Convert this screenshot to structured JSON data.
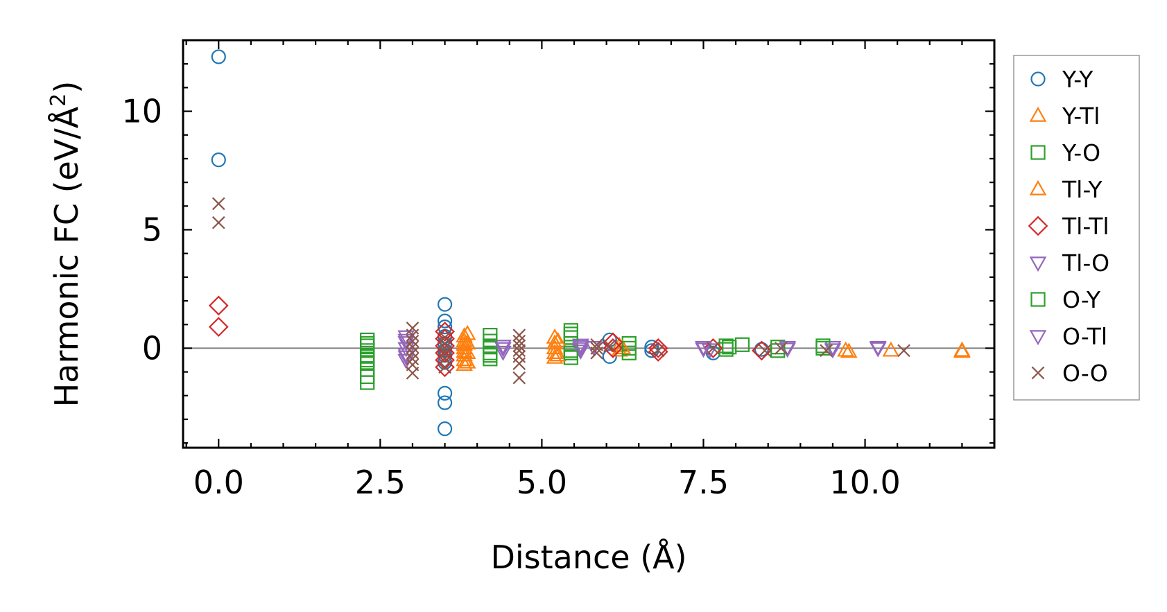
{
  "chart_data": {
    "type": "scatter",
    "title": "",
    "xlabel": "Distance (Å)",
    "ylabel": "Harmonic FC (eV/Å²)",
    "ylabel_parts": {
      "main": "Harmonic FC (eV/Å",
      "sup": "2",
      "close": ")"
    },
    "xlim": [
      -0.55,
      12.0
    ],
    "ylim": [
      -4.2,
      13.0
    ],
    "x_ticks": [
      0.0,
      2.5,
      5.0,
      7.5,
      10.0
    ],
    "x_tick_labels": [
      "0.0",
      "2.5",
      "5.0",
      "7.5",
      "10.0"
    ],
    "y_ticks": [
      0,
      5,
      10
    ],
    "y_tick_labels": [
      "0",
      "5",
      "10"
    ],
    "x_minor_step": 0.5,
    "y_minor_step": 1.0,
    "zero_line": true,
    "grid": false,
    "legend_position": "right-outside",
    "series": [
      {
        "name": "Y-Y",
        "marker": "circle",
        "color": "#1f77b4",
        "points": [
          [
            0,
            12.3
          ],
          [
            0,
            7.95
          ],
          [
            3.5,
            1.85
          ],
          [
            3.5,
            1.15
          ],
          [
            3.5,
            0.9
          ],
          [
            3.5,
            0.5
          ],
          [
            3.5,
            0.2
          ],
          [
            3.5,
            -0.1
          ],
          [
            3.5,
            -0.3
          ],
          [
            3.5,
            -0.6
          ],
          [
            3.5,
            -1.9
          ],
          [
            3.5,
            -2.3
          ],
          [
            3.5,
            -3.4
          ],
          [
            6.05,
            0.35
          ],
          [
            6.05,
            -0.35
          ],
          [
            6.7,
            0.05
          ],
          [
            6.7,
            -0.1
          ],
          [
            7.65,
            -0.2
          ],
          [
            8.4,
            -0.05
          ]
        ]
      },
      {
        "name": "Y-Tl",
        "marker": "triangle-up",
        "color": "#ff7f0e",
        "points": [
          [
            3.8,
            0.5
          ],
          [
            3.8,
            0.3
          ],
          [
            3.8,
            0.15
          ],
          [
            3.8,
            0
          ],
          [
            3.8,
            -0.15
          ],
          [
            3.8,
            -0.3
          ],
          [
            3.8,
            -0.5
          ],
          [
            3.8,
            -0.7
          ],
          [
            5.2,
            0.45
          ],
          [
            5.2,
            0.2
          ],
          [
            5.2,
            0
          ],
          [
            5.2,
            -0.2
          ],
          [
            5.2,
            -0.4
          ],
          [
            6.2,
            0.1
          ],
          [
            6.2,
            -0.1
          ],
          [
            9.7,
            -0.1
          ],
          [
            10.4,
            -0.1
          ],
          [
            11.5,
            -0.1
          ]
        ]
      },
      {
        "name": "Y-O",
        "marker": "square",
        "color": "#2ca02c",
        "points": [
          [
            2.3,
            0.35
          ],
          [
            2.3,
            0.1
          ],
          [
            2.3,
            -0.1
          ],
          [
            2.3,
            -0.3
          ],
          [
            2.3,
            -0.6
          ],
          [
            2.3,
            -0.9
          ],
          [
            2.3,
            -1.2
          ],
          [
            2.3,
            -1.45
          ],
          [
            4.2,
            0.55
          ],
          [
            4.2,
            0.3
          ],
          [
            4.2,
            0.05
          ],
          [
            4.2,
            -0.2
          ],
          [
            4.2,
            -0.45
          ],
          [
            5.45,
            0.75
          ],
          [
            5.45,
            0.45
          ],
          [
            5.45,
            0.2
          ],
          [
            5.45,
            -0.1
          ],
          [
            5.45,
            -0.4
          ],
          [
            6.35,
            0.2
          ],
          [
            6.35,
            -0.2
          ],
          [
            7.85,
            0.1
          ],
          [
            7.85,
            -0.05
          ],
          [
            8.1,
            0.15
          ],
          [
            8.65,
            0.05
          ],
          [
            9.35,
            0.1
          ]
        ]
      },
      {
        "name": "Tl-Y",
        "marker": "triangle-up",
        "color": "#ff7f0e",
        "points": [
          [
            3.85,
            0.6
          ],
          [
            3.85,
            0.2
          ],
          [
            3.85,
            -0.2
          ],
          [
            3.85,
            -0.6
          ],
          [
            5.25,
            0.3
          ],
          [
            5.25,
            -0.3
          ],
          [
            6.25,
            0
          ],
          [
            9.75,
            -0.15
          ],
          [
            11.5,
            -0.15
          ]
        ]
      },
      {
        "name": "Tl-Tl",
        "marker": "diamond",
        "color": "#d62728",
        "points": [
          [
            0,
            1.8
          ],
          [
            0,
            0.9
          ],
          [
            3.5,
            0.7
          ],
          [
            3.5,
            0.4
          ],
          [
            3.5,
            0.1
          ],
          [
            3.5,
            -0.2
          ],
          [
            3.5,
            -0.5
          ],
          [
            3.5,
            -0.8
          ],
          [
            6.1,
            0.25
          ],
          [
            6.1,
            0
          ],
          [
            6.8,
            0
          ],
          [
            6.8,
            -0.15
          ],
          [
            7.65,
            0
          ],
          [
            8.4,
            -0.1
          ]
        ]
      },
      {
        "name": "Tl-O",
        "marker": "triangle-down",
        "color": "#9467bd",
        "points": [
          [
            2.9,
            0.5
          ],
          [
            2.9,
            0.25
          ],
          [
            2.9,
            0
          ],
          [
            2.9,
            -0.25
          ],
          [
            2.9,
            -0.5
          ],
          [
            4.4,
            0.1
          ],
          [
            4.4,
            -0.15
          ],
          [
            5.6,
            0.15
          ],
          [
            5.6,
            0
          ],
          [
            5.6,
            -0.1
          ],
          [
            5.8,
            0.05
          ],
          [
            7.5,
            0.05
          ],
          [
            7.6,
            -0.05
          ],
          [
            8.8,
            0.05
          ],
          [
            9.5,
            0.05
          ],
          [
            10.2,
            0.05
          ]
        ]
      },
      {
        "name": "O-Y",
        "marker": "square",
        "color": "#2ca02c",
        "points": [
          [
            2.3,
            0.2
          ],
          [
            2.3,
            -0.5
          ],
          [
            4.2,
            0.1
          ],
          [
            4.2,
            -0.3
          ],
          [
            5.45,
            0.6
          ],
          [
            5.45,
            -0.2
          ],
          [
            6.35,
            0
          ],
          [
            7.9,
            0.05
          ],
          [
            8.65,
            -0.1
          ],
          [
            9.35,
            0
          ]
        ]
      },
      {
        "name": "O-Tl",
        "marker": "triangle-down",
        "color": "#9467bd",
        "points": [
          [
            2.9,
            0.35
          ],
          [
            2.9,
            -0.35
          ],
          [
            4.4,
            0
          ],
          [
            5.6,
            0.08
          ],
          [
            7.5,
            -0.02
          ],
          [
            8.8,
            -0.02
          ],
          [
            9.5,
            -0.05
          ],
          [
            10.2,
            0
          ]
        ]
      },
      {
        "name": "O-O",
        "marker": "x",
        "color": "#8c564b",
        "points": [
          [
            0,
            6.1
          ],
          [
            0,
            5.3
          ],
          [
            3.0,
            0.85
          ],
          [
            3.0,
            0.55
          ],
          [
            3.0,
            0.3
          ],
          [
            3.0,
            0.05
          ],
          [
            3.0,
            -0.2
          ],
          [
            3.0,
            -0.45
          ],
          [
            3.0,
            -0.7
          ],
          [
            3.0,
            -1.05
          ],
          [
            3.5,
            0.45
          ],
          [
            3.5,
            0.2
          ],
          [
            3.5,
            0
          ],
          [
            3.5,
            -0.2
          ],
          [
            3.5,
            -0.45
          ],
          [
            3.5,
            -0.8
          ],
          [
            4.65,
            0.55
          ],
          [
            4.65,
            0.3
          ],
          [
            4.65,
            0.1
          ],
          [
            4.65,
            -0.1
          ],
          [
            4.65,
            -0.35
          ],
          [
            4.65,
            -0.65
          ],
          [
            4.65,
            -1.25
          ],
          [
            5.85,
            0.15
          ],
          [
            5.85,
            0
          ],
          [
            5.85,
            -0.2
          ],
          [
            6.05,
            0.1
          ],
          [
            6.8,
            -0.1
          ],
          [
            7.65,
            0
          ],
          [
            8.45,
            -0.1
          ],
          [
            8.7,
            0
          ],
          [
            9.4,
            -0.1
          ],
          [
            10.6,
            -0.1
          ]
        ]
      }
    ]
  }
}
